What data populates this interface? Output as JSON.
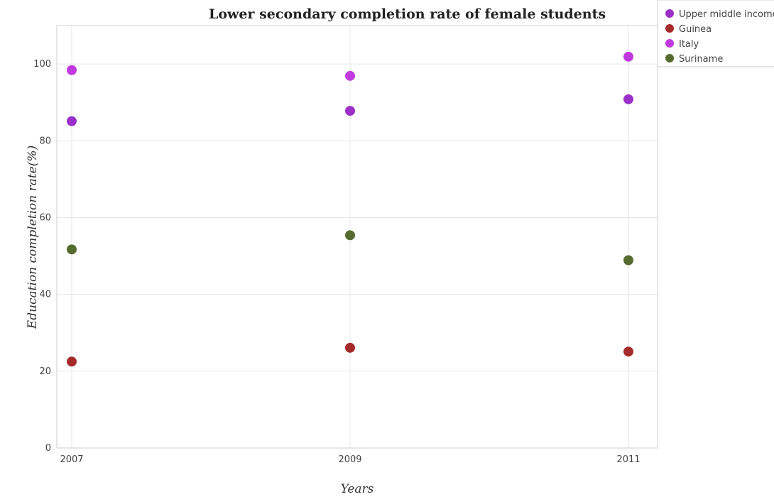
{
  "chart_data": {
    "type": "scatter",
    "title": "Lower secondary completion rate of female students",
    "xlabel": "Years",
    "ylabel": "Education completion rate(%)",
    "categories": [
      "2007",
      "2009",
      "2011"
    ],
    "ylim": [
      0,
      110
    ],
    "yticks": [
      0,
      20,
      40,
      60,
      80,
      100
    ],
    "grid": true,
    "legend_position": "top-right",
    "series": [
      {
        "name": "Upper middle income",
        "color": "#9b30c8",
        "values": [
          85.1,
          87.8,
          90.8
        ]
      },
      {
        "name": "Guinea",
        "color": "#a52a2a",
        "values": [
          22.5,
          26.1,
          25.1
        ]
      },
      {
        "name": "Italy",
        "color": "#c03ae0",
        "values": [
          98.4,
          96.9,
          101.9
        ]
      },
      {
        "name": "Suriname",
        "color": "#556b2f",
        "values": [
          51.7,
          55.4,
          48.9
        ]
      }
    ]
  }
}
